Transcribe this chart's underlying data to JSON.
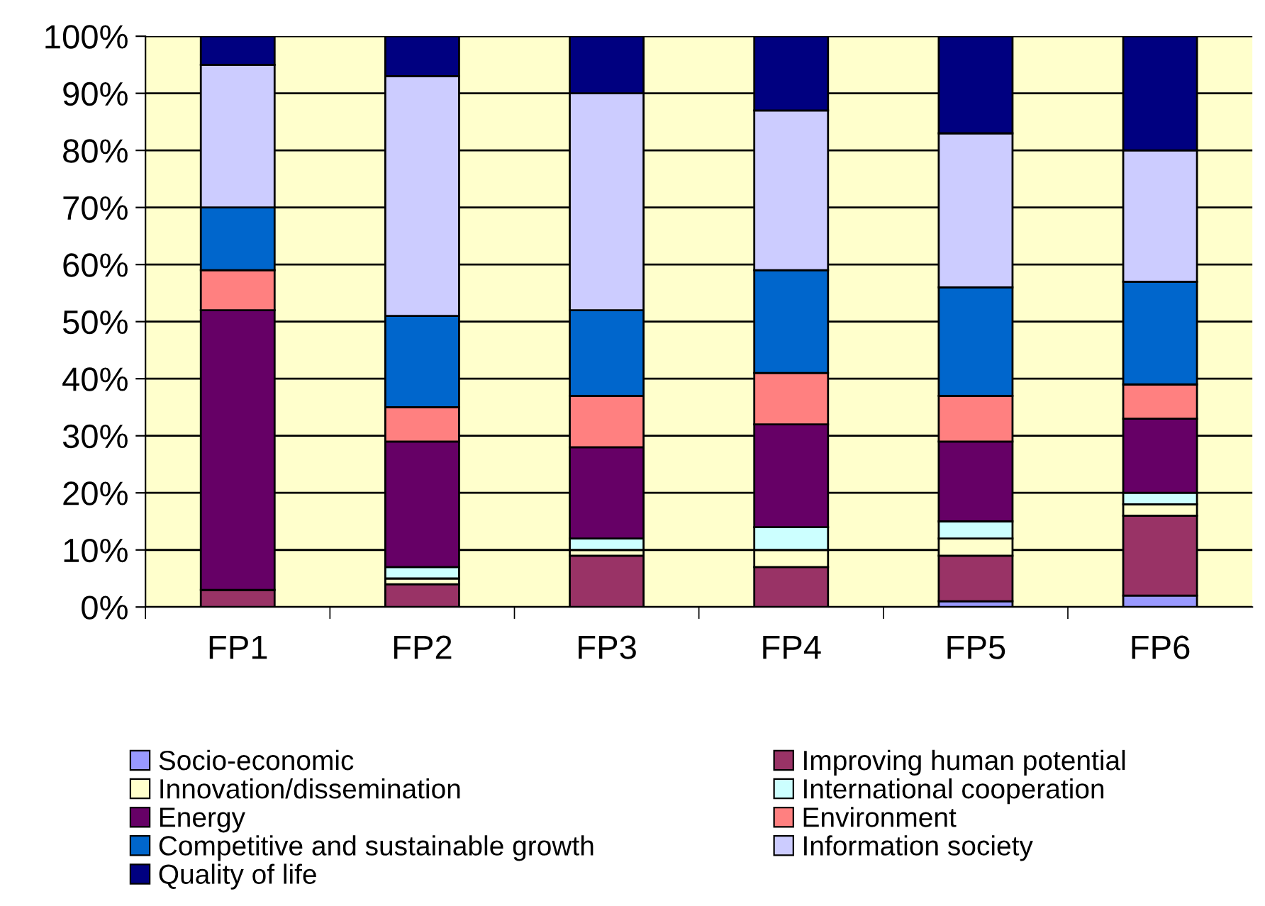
{
  "chart_data": {
    "type": "bar",
    "stacked": true,
    "categories": [
      "FP1",
      "FP2",
      "FP3",
      "FP4",
      "FP5",
      "FP6"
    ],
    "series": [
      {
        "name": "Socio-economic",
        "color": "#9999ff",
        "values": [
          0,
          0,
          0,
          0,
          1,
          2
        ]
      },
      {
        "name": "Improving human potential",
        "color": "#993366",
        "values": [
          3,
          4,
          9,
          7,
          8,
          14
        ]
      },
      {
        "name": "Innovation/dissemination",
        "color": "#ffffcc",
        "values": [
          0,
          1,
          1,
          3,
          3,
          2
        ]
      },
      {
        "name": "International cooperation",
        "color": "#ccffff",
        "values": [
          0,
          2,
          2,
          4,
          3,
          2
        ]
      },
      {
        "name": "Energy",
        "color": "#660066",
        "values": [
          49,
          22,
          16,
          18,
          14,
          13
        ]
      },
      {
        "name": "Environment",
        "color": "#ff8080",
        "values": [
          7,
          6,
          9,
          9,
          8,
          6
        ]
      },
      {
        "name": "Competitive and sustainable growth",
        "color": "#0066cc",
        "values": [
          11,
          16,
          15,
          18,
          19,
          18
        ]
      },
      {
        "name": "Information society",
        "color": "#ccccff",
        "values": [
          25,
          42,
          38,
          28,
          27,
          23
        ]
      },
      {
        "name": "Quality of life",
        "color": "#000080",
        "values": [
          5,
          7,
          10,
          13,
          17,
          20
        ]
      }
    ],
    "ylim": [
      0,
      100
    ],
    "yticks": [
      {
        "value": 0,
        "label": "0%"
      },
      {
        "value": 10,
        "label": "10%"
      },
      {
        "value": 20,
        "label": "20%"
      },
      {
        "value": 30,
        "label": "30%"
      },
      {
        "value": 40,
        "label": "40%"
      },
      {
        "value": 50,
        "label": "50%"
      },
      {
        "value": 60,
        "label": "60%"
      },
      {
        "value": 70,
        "label": "70%"
      },
      {
        "value": 80,
        "label": "80%"
      },
      {
        "value": 90,
        "label": "90%"
      },
      {
        "value": 100,
        "label": "100%"
      }
    ],
    "grid": "y",
    "legend": "bottom"
  }
}
